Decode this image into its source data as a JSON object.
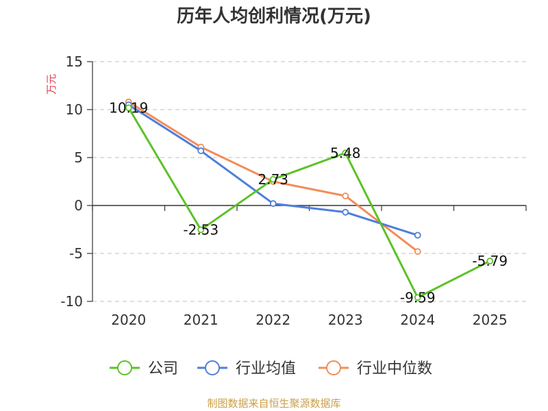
{
  "chart_data": {
    "type": "line",
    "title": "历年人均创利情况(万元)",
    "ylabel": "万元",
    "ylim": [
      -10,
      15
    ],
    "yticks": [
      15,
      10,
      5,
      0,
      -5,
      -10
    ],
    "categories": [
      "2020",
      "2021",
      "2022",
      "2023",
      "2024",
      "2025"
    ],
    "grid": true,
    "legend_position": "bottom",
    "series": [
      {
        "name": "公司",
        "color": "#5cc227",
        "show_labels": true,
        "values": [
          10.19,
          -2.53,
          2.73,
          5.48,
          -9.59,
          -5.79
        ],
        "labels": [
          "10.19",
          "-2.53",
          "2.73",
          "5.48",
          "-9.59",
          "-5.79"
        ]
      },
      {
        "name": "行业均值",
        "color": "#4f7fd9",
        "show_labels": false,
        "values": [
          10.5,
          5.7,
          0.2,
          -0.7,
          -3.1,
          null
        ]
      },
      {
        "name": "行业中位数",
        "color": "#f28c5a",
        "show_labels": false,
        "values": [
          10.8,
          6.1,
          2.5,
          1.0,
          -4.8,
          null
        ]
      }
    ]
  },
  "source_text": "制图数据来自恒生聚源数据库"
}
